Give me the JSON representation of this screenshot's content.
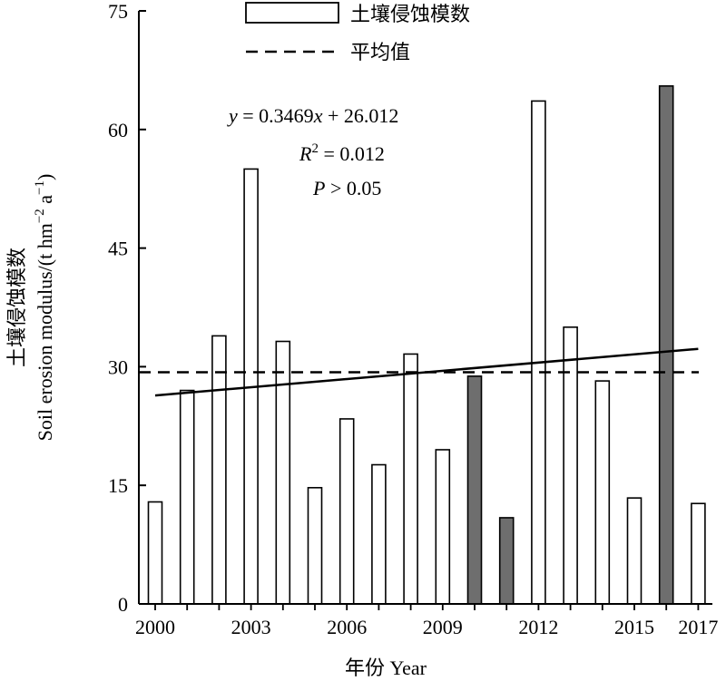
{
  "chart_data": {
    "type": "bar",
    "years": [
      2000,
      2001,
      2002,
      2003,
      2004,
      2005,
      2006,
      2007,
      2008,
      2009,
      2010,
      2011,
      2012,
      2013,
      2014,
      2015,
      2016,
      2017
    ],
    "values": [
      12.9,
      27.0,
      33.9,
      55.0,
      33.2,
      14.7,
      23.4,
      17.6,
      31.6,
      19.5,
      28.8,
      10.9,
      63.6,
      35.0,
      28.2,
      13.4,
      65.5,
      12.7
    ],
    "highlighted_years": [
      2010,
      2011,
      2016
    ],
    "x_tick_labels": [
      "2000",
      "2003",
      "2006",
      "2009",
      "2012",
      "2015",
      "2017"
    ],
    "y_ticks": [
      0,
      15,
      30,
      45,
      60,
      75
    ],
    "ylim": [
      0,
      75
    ],
    "mean_value": 29.3,
    "trend": {
      "slope": 0.3469,
      "intercept": 26.012
    },
    "legend": {
      "bar_label": "土壤侵蚀模数",
      "mean_label": "平均值"
    },
    "equation": {
      "line1_y": "y",
      "line1_rest": " = 0.3469",
      "line1_x": "x",
      "line1_tail": " + 26.012",
      "line2_r": "R",
      "line2_sup": "2",
      "line2_rest": " = 0.012",
      "line3_p": "P",
      "line3_rest": " > 0.05"
    },
    "xlabel": "年份 Year",
    "ylabel_cn": "土壤侵蚀模数",
    "ylabel_en": "Soil erosion modulus/(t hm",
    "ylabel_sup1": "−2",
    "ylabel_mid": " a",
    "ylabel_sup2": "−1",
    "ylabel_end": ")",
    "colors": {
      "bar_fill": "#ffffff",
      "bar_highlight": "#6e6e6e",
      "stroke": "#000000"
    }
  }
}
